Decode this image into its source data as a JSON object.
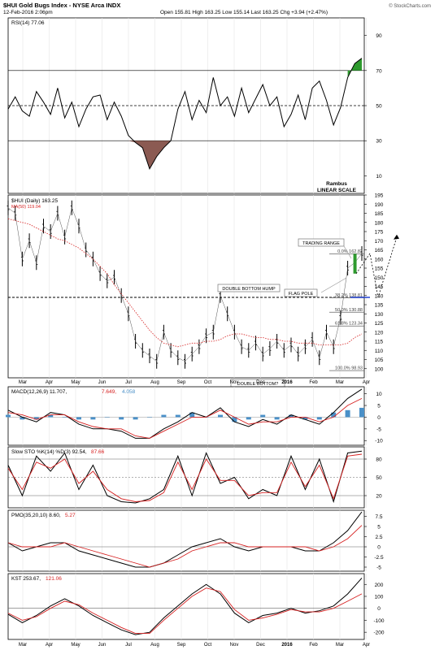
{
  "header": {
    "symbol_title": "$HUI Gold Bugs Index - NYSE Arca INDX",
    "date_time": "12-Feb-2016 2:06pm",
    "quote": "Open 155.81 High 163.25 Low 155.14 Last 163.25 Chg +3.94 (+2.47%)",
    "credit": "© StockCharts.com"
  },
  "x_axis": {
    "months": [
      "Mar",
      "Apr",
      "May",
      "Jun",
      "Jul",
      "Aug",
      "Sep",
      "Oct",
      "Nov",
      "Dec",
      "2016",
      "Feb",
      "Mar",
      "Apr"
    ]
  },
  "colors": {
    "price": "#000000",
    "ma": "#d62020",
    "macd_hist": "#4a90c8",
    "rsi_fill": "#8b5a52",
    "green_mark": "#2e9a2e",
    "blue_mark": "#2040d0"
  },
  "chart_data": [
    {
      "type": "line",
      "panel": "rsi",
      "legend": "RSI(14) 77.06",
      "ylim": [
        0,
        100
      ],
      "ticks": [
        10,
        30,
        50,
        70,
        90
      ],
      "reference_lines": [
        30,
        50,
        70
      ],
      "x": [
        0,
        5,
        10,
        15,
        20,
        25,
        30,
        35,
        40,
        45,
        50,
        55,
        60,
        65,
        70,
        75,
        80,
        85,
        90,
        95,
        100,
        105,
        110,
        115,
        120,
        125,
        130,
        135,
        140,
        145,
        150,
        155,
        160,
        165,
        170,
        175,
        180,
        185,
        190,
        195,
        200,
        205,
        210,
        215,
        220,
        225,
        230,
        235,
        240,
        245,
        250
      ],
      "values": [
        48,
        55,
        47,
        44,
        58,
        52,
        45,
        60,
        43,
        52,
        38,
        48,
        55,
        56,
        42,
        52,
        44,
        33,
        29,
        26,
        14,
        21,
        26,
        30,
        48,
        58,
        42,
        53,
        46,
        66,
        50,
        55,
        44,
        60,
        46,
        54,
        62,
        50,
        55,
        38,
        45,
        56,
        42,
        60,
        64,
        53,
        39,
        49,
        66,
        74,
        77
      ],
      "annotations": [
        "Rambus",
        "LINEAR SCALE"
      ]
    },
    {
      "type": "line",
      "panel": "price",
      "legend": "$HUI (Daily) 163.25",
      "ma_legend": "MA(50) 119.04",
      "ylim": [
        95,
        195
      ],
      "ticks": [
        100,
        105,
        110,
        115,
        120,
        125,
        130,
        135,
        140,
        145,
        150,
        155,
        160,
        165,
        170,
        175,
        180,
        185,
        190,
        195
      ],
      "x": [
        0,
        5,
        10,
        15,
        20,
        25,
        30,
        35,
        40,
        45,
        50,
        55,
        60,
        65,
        70,
        75,
        80,
        85,
        90,
        95,
        100,
        105,
        110,
        115,
        120,
        125,
        130,
        135,
        140,
        145,
        150,
        155,
        160,
        165,
        170,
        175,
        180,
        185,
        190,
        195,
        200,
        205,
        210,
        215,
        220,
        225,
        230,
        235,
        240,
        245,
        250
      ],
      "values": [
        188,
        185,
        160,
        170,
        158,
        178,
        175,
        185,
        172,
        188,
        178,
        165,
        160,
        152,
        148,
        150,
        140,
        130,
        115,
        110,
        107,
        104,
        120,
        110,
        106,
        104,
        108,
        112,
        118,
        120,
        140,
        130,
        120,
        112,
        110,
        114,
        108,
        111,
        115,
        110,
        113,
        108,
        112,
        116,
        106,
        120,
        112,
        128,
        155,
        158,
        163
      ],
      "ma": [
        182,
        181,
        180,
        179,
        177,
        175,
        173,
        171,
        170,
        168,
        166,
        163,
        160,
        156,
        152,
        146,
        141,
        136,
        131,
        126,
        121,
        117,
        114,
        113,
        112,
        113,
        114,
        114,
        115,
        115,
        116,
        118,
        119,
        119,
        118,
        117,
        117,
        116,
        116,
        115,
        115,
        114,
        114,
        114,
        113,
        113,
        113,
        113,
        114,
        117,
        119
      ],
      "hlines": [
        {
          "value": 139,
          "label": ""
        },
        {
          "value": 162.82,
          "label": "0.0% 162.82"
        },
        {
          "value": 138.81,
          "label": "38.2% 138.81"
        },
        {
          "value": 130.88,
          "label": "50.0% 130.88"
        },
        {
          "value": 123.34,
          "label": "61.8% 123.34"
        },
        {
          "value": 98.93,
          "label": "100.0% 98.93"
        }
      ],
      "annotations": [
        "DOUBLE BOTTOM HUMP",
        "FLAG POLE",
        "TRADING RANGE",
        "DOUBLE BOTTOM?"
      ]
    },
    {
      "type": "line",
      "panel": "macd",
      "legend_label": "MACD(12,26,9) 11.707,",
      "legend_signal": "7.649,",
      "legend_hist": "4.058",
      "ylim": [
        -12,
        13
      ],
      "ticks": [
        10,
        5,
        0,
        -5,
        -10
      ],
      "x": [
        0,
        10,
        20,
        30,
        40,
        50,
        60,
        70,
        80,
        90,
        100,
        110,
        120,
        130,
        140,
        150,
        160,
        170,
        180,
        190,
        200,
        210,
        220,
        230,
        240,
        250
      ],
      "macd": [
        3,
        0,
        -2,
        2,
        1,
        -3,
        -5,
        -5,
        -6,
        -9,
        -9,
        -5,
        -2,
        2,
        0,
        4,
        -2,
        -4,
        -1,
        -3,
        1,
        -1,
        -3,
        2,
        8,
        12
      ],
      "signal": [
        2,
        1,
        -1,
        1,
        1,
        -2,
        -4,
        -5,
        -5,
        -8,
        -9,
        -6,
        -3,
        0,
        0,
        3,
        0,
        -3,
        -2,
        -2,
        0,
        0,
        -2,
        0,
        5,
        8
      ],
      "histogram": [
        1,
        -1,
        -1,
        1,
        0,
        -1,
        -1,
        0,
        -1,
        -1,
        0,
        1,
        1,
        2,
        0,
        1,
        -2,
        -1,
        1,
        -1,
        1,
        -1,
        -1,
        2,
        3,
        4
      ]
    },
    {
      "type": "line",
      "panel": "slow_sto",
      "legend_label": "Slow STO %K(14) %D(3) 92.54,",
      "legend_d": "87.66",
      "ylim": [
        0,
        100
      ],
      "ticks": [
        80,
        50,
        20
      ],
      "reference_lines": [
        20,
        50,
        80
      ],
      "x": [
        0,
        10,
        20,
        30,
        40,
        50,
        60,
        70,
        80,
        90,
        100,
        110,
        120,
        130,
        140,
        150,
        160,
        170,
        180,
        190,
        200,
        210,
        220,
        230,
        240,
        250
      ],
      "k": [
        70,
        20,
        85,
        60,
        90,
        30,
        70,
        20,
        10,
        8,
        15,
        30,
        85,
        20,
        90,
        40,
        50,
        15,
        30,
        20,
        85,
        30,
        80,
        10,
        90,
        93
      ],
      "d": [
        65,
        30,
        75,
        65,
        80,
        40,
        60,
        30,
        15,
        10,
        12,
        25,
        75,
        30,
        80,
        45,
        45,
        20,
        25,
        25,
        75,
        35,
        70,
        15,
        85,
        88
      ]
    },
    {
      "type": "line",
      "panel": "pmo",
      "legend_label": "PMO(35,20,10) 8.60,",
      "legend_signal": "5.27",
      "ylim": [
        -6,
        9
      ],
      "ticks": [
        7.5,
        5,
        2.5,
        0,
        -2.5,
        -5
      ],
      "x": [
        0,
        10,
        20,
        30,
        40,
        50,
        60,
        70,
        80,
        90,
        100,
        110,
        120,
        130,
        140,
        150,
        160,
        170,
        180,
        190,
        200,
        210,
        220,
        230,
        240,
        250
      ],
      "pmo": [
        1,
        -1,
        0,
        1,
        1,
        -1,
        -2,
        -3,
        -4,
        -5,
        -5,
        -4,
        -2,
        0,
        1,
        2,
        0,
        -1,
        0,
        0,
        0,
        -1,
        -1,
        1,
        4,
        8.6
      ],
      "signal": [
        1,
        0,
        0,
        0,
        1,
        0,
        -1,
        -2,
        -3,
        -4,
        -5,
        -4,
        -3,
        -1,
        0,
        1,
        1,
        0,
        0,
        0,
        0,
        0,
        -1,
        0,
        2,
        5.27
      ]
    },
    {
      "type": "line",
      "panel": "kst",
      "legend_label": "KST 253.67,",
      "legend_signal": "121.06",
      "ylim": [
        -260,
        290
      ],
      "ticks": [
        200,
        100,
        0,
        -100,
        -200
      ],
      "x": [
        0,
        10,
        20,
        30,
        40,
        50,
        60,
        70,
        80,
        90,
        100,
        110,
        120,
        130,
        140,
        150,
        160,
        170,
        180,
        190,
        200,
        210,
        220,
        230,
        240,
        250
      ],
      "kst": [
        -50,
        -120,
        -60,
        20,
        80,
        20,
        -60,
        -120,
        -180,
        -220,
        -200,
        -80,
        20,
        120,
        200,
        120,
        -40,
        -120,
        -60,
        -40,
        0,
        -40,
        -20,
        20,
        120,
        253.67
      ],
      "signal": [
        -40,
        -100,
        -70,
        0,
        60,
        30,
        -40,
        -100,
        -160,
        -210,
        -210,
        -100,
        0,
        100,
        170,
        140,
        -10,
        -100,
        -80,
        -50,
        -10,
        -30,
        -30,
        0,
        60,
        121.06
      ]
    }
  ]
}
